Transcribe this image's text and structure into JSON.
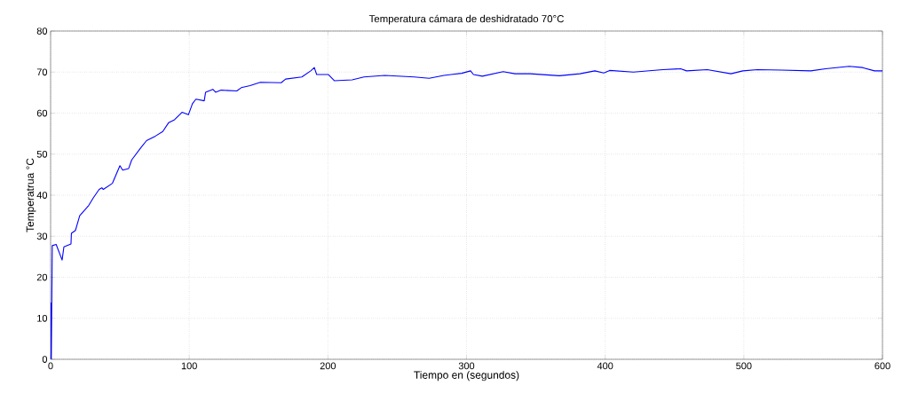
{
  "chart_data": {
    "type": "line",
    "title": "Temperatura cámara de deshidratado 70°C",
    "xlabel": "Tiempo en (segundos)",
    "ylabel": "Temperatrua °C",
    "xlim": [
      0,
      600
    ],
    "ylim": [
      0,
      80
    ],
    "xticks": [
      0,
      100,
      200,
      300,
      400,
      500,
      600
    ],
    "yticks": [
      0,
      10,
      20,
      30,
      40,
      50,
      60,
      70,
      80
    ],
    "grid": true,
    "series": [
      {
        "color": "#0000ff",
        "x": [
          0,
          0.2,
          0.5,
          1.2,
          4,
          8.3,
          9.6,
          14.7,
          15,
          17.9,
          21,
          27.5,
          30.7,
          35,
          37,
          38,
          44.6,
          50,
          52,
          56.3,
          58.5,
          64.9,
          69.2,
          75.6,
          80.9,
          85.2,
          89.4,
          94.8,
          99.4,
          102.3,
          104.8,
          110.8,
          111.8,
          117,
          119,
          123,
          134.3,
          137.5,
          143.9,
          151.3,
          166.3,
          169.5,
          181.2,
          187.6,
          190.2,
          191.9,
          200.4,
          204.6,
          217.5,
          226,
          241,
          262.3,
          273,
          283.7,
          296.5,
          302.9,
          305,
          311.4,
          326.4,
          334.9,
          346,
          366.9,
          381.8,
          392.5,
          399,
          403.2,
          420.3,
          441.6,
          454.4,
          458.7,
          473.6,
          490.7,
          499.3,
          509.9,
          527,
          548.3,
          559,
          576,
          585.7,
          594.2,
          600
        ],
        "values": [
          0,
          13.7,
          0,
          27.7,
          28.0,
          24.2,
          27.4,
          28.1,
          30.7,
          31.4,
          35.0,
          37.5,
          39.3,
          41.4,
          41.8,
          41.4,
          42.9,
          47.2,
          46.1,
          46.5,
          48.6,
          51.5,
          53.3,
          54.4,
          55.5,
          57.7,
          58.4,
          60.2,
          59.6,
          62.3,
          63.4,
          63.0,
          65.1,
          65.8,
          65.1,
          65.6,
          65.4,
          66.2,
          66.7,
          67.5,
          67.4,
          68.3,
          68.8,
          70.3,
          71.1,
          69.4,
          69.4,
          67.9,
          68.1,
          68.8,
          69.2,
          68.8,
          68.5,
          69.2,
          69.7,
          70.3,
          69.4,
          69.0,
          70.1,
          69.6,
          69.6,
          69.1,
          69.6,
          70.3,
          69.8,
          70.4,
          70.0,
          70.6,
          70.8,
          70.3,
          70.6,
          69.6,
          70.3,
          70.6,
          70.5,
          70.3,
          70.8,
          71.4,
          71.1,
          70.3,
          70.3
        ]
      }
    ]
  }
}
